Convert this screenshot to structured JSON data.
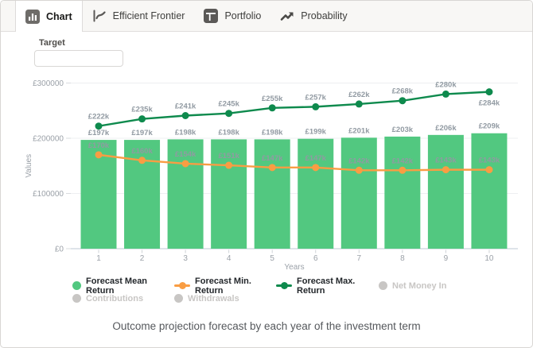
{
  "tabs": [
    {
      "label": "Chart",
      "active": true
    },
    {
      "label": "Efficient Frontier",
      "active": false
    },
    {
      "label": "Portfolio",
      "active": false
    },
    {
      "label": "Probability",
      "active": false
    }
  ],
  "target": {
    "label": "Target",
    "value": "",
    "placeholder": ""
  },
  "chart_data": {
    "type": "bar+line",
    "x": [
      1,
      2,
      3,
      4,
      5,
      6,
      7,
      8,
      9,
      10
    ],
    "x_tick_labels": [
      "1",
      "2",
      "3",
      "4",
      "5",
      "6",
      "7",
      "8",
      "9",
      "10"
    ],
    "xlabel": "Years",
    "ylabel": "Values",
    "ylim": [
      0,
      310000
    ],
    "grid": "horizontal",
    "legend_position": "bottom",
    "y_ticks": [
      {
        "value": 0,
        "label": "£0"
      },
      {
        "value": 100000,
        "label": "£100000"
      },
      {
        "value": 200000,
        "label": "£200000"
      },
      {
        "value": 300000,
        "label": "£300000"
      }
    ],
    "series": [
      {
        "name": "Forecast Mean Return",
        "type": "bar",
        "color": "#52C880",
        "values": [
          197000,
          197000,
          198000,
          198000,
          198000,
          199000,
          201000,
          203000,
          206000,
          209000
        ],
        "labels": [
          "£197k",
          "£197k",
          "£198k",
          "£198k",
          "£198k",
          "£199k",
          "£201k",
          "£203k",
          "£206k",
          "£209k"
        ]
      },
      {
        "name": "Forecast Min. Return",
        "type": "line",
        "color": "#F99D43",
        "values": [
          170000,
          160000,
          154000,
          151000,
          147000,
          147000,
          142000,
          142000,
          143000,
          143000
        ],
        "labels": [
          "£170k",
          "£160k",
          "£154k",
          "£151k",
          "£147k",
          "£147k",
          "£142k",
          "£142k",
          "£143k",
          "£143k"
        ]
      },
      {
        "name": "Forecast Max. Return",
        "type": "line",
        "color": "#0E8A4D",
        "last_label_below": true,
        "values": [
          222000,
          235000,
          241000,
          245000,
          255000,
          257000,
          262000,
          268000,
          280000,
          284000
        ],
        "labels": [
          "£222k",
          "£235k",
          "£241k",
          "£245k",
          "£255k",
          "£257k",
          "£262k",
          "£268k",
          "£280k",
          "£284k"
        ]
      }
    ],
    "disabled_series": [
      "Net Money In",
      "Contributions",
      "Withdrawals"
    ]
  },
  "legend": {
    "rows": [
      [
        {
          "label": "Forecast Mean Return",
          "marker": "circle",
          "color": "#52C880",
          "enabled": true
        },
        {
          "label": "Forecast Min. Return",
          "marker": "line-dot",
          "color": "#F99D43",
          "enabled": true
        },
        {
          "label": "Forecast Max. Return",
          "marker": "line-dot",
          "color": "#0E8A4D",
          "enabled": true
        },
        {
          "label": "Net Money In",
          "marker": "circle",
          "color": "#C8C6C4",
          "enabled": false
        }
      ],
      [
        {
          "label": "Contributions",
          "marker": "circle",
          "color": "#C8C6C4",
          "enabled": false
        },
        {
          "label": "Withdrawals",
          "marker": "circle",
          "color": "#C8C6C4",
          "enabled": false
        }
      ]
    ]
  },
  "caption": "Outcome projection forecast by each year of the investment term",
  "colors": {
    "bar_green": "#52C880",
    "line_orange": "#F99D43",
    "line_dark_green": "#0E8A4D",
    "disabled_gray": "#C8C6C4",
    "tab_bar_bg": "#F8F7F5"
  }
}
